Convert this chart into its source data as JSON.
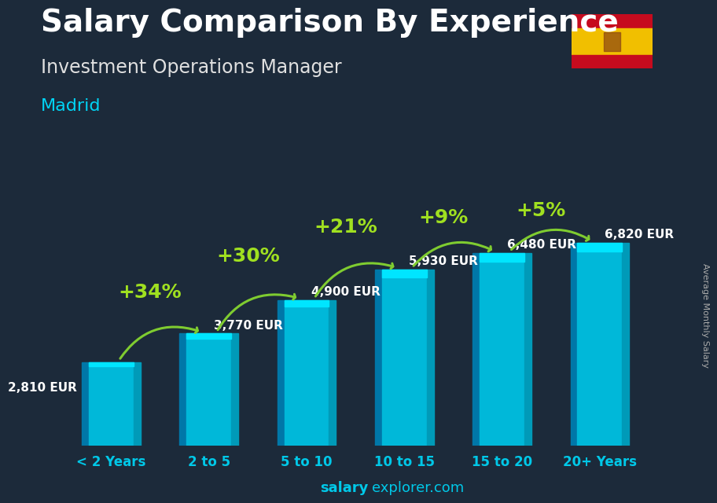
{
  "categories": [
    "< 2 Years",
    "2 to 5",
    "5 to 10",
    "10 to 15",
    "15 to 20",
    "20+ Years"
  ],
  "values": [
    2810,
    3770,
    4900,
    5930,
    6480,
    6820
  ],
  "value_labels": [
    "2,810 EUR",
    "3,770 EUR",
    "4,900 EUR",
    "5,930 EUR",
    "6,480 EUR",
    "6,820 EUR"
  ],
  "pct_labels": [
    "+34%",
    "+30%",
    "+21%",
    "+9%",
    "+5%"
  ],
  "bar_main_color": "#00b8d9",
  "bar_left_color": "#0077a8",
  "bar_right_color": "#009ab8",
  "bar_top_color": "#00e5ff",
  "bg_color": "#1c2a3a",
  "title": "Salary Comparison By Experience",
  "subtitle": "Investment Operations Manager",
  "city": "Madrid",
  "ylabel_text": "Average Monthly Salary",
  "footer_bold": "salary",
  "footer_regular": "explorer.com",
  "title_color": "#ffffff",
  "subtitle_color": "#e0e0e0",
  "city_color": "#00d4f5",
  "value_label_color": "#ffffff",
  "pct_color": "#a0e020",
  "xlabel_color": "#00c8e8",
  "footer_color": "#00c8e8",
  "ylim": [
    0,
    8800
  ],
  "bar_width": 0.6,
  "pct_fontsize": 18,
  "value_fontsize": 11,
  "title_fontsize": 28,
  "subtitle_fontsize": 17,
  "city_fontsize": 16,
  "xlabel_fontsize": 12
}
